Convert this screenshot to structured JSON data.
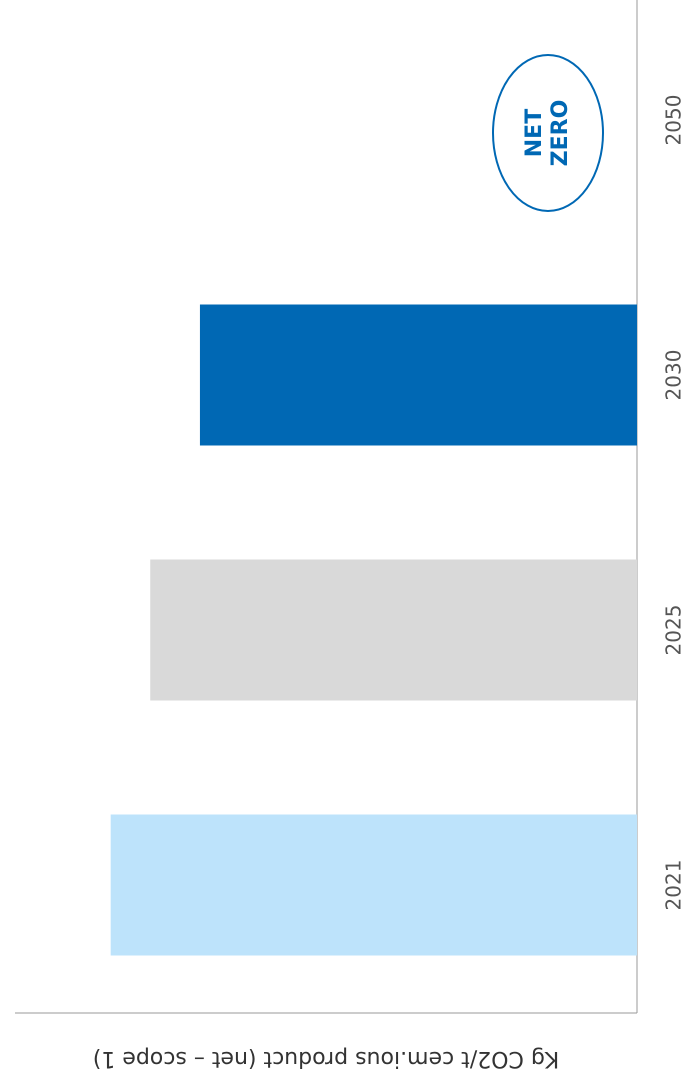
{
  "chart_data": {
    "type": "bar",
    "orientation": "rotated",
    "y_label": "Kg CO2/t cem.ious product (net – scope 1)",
    "categories": [
      "2021",
      "2025",
      "2030",
      "2050"
    ],
    "values": [
      572,
      529,
      475,
      0
    ],
    "colors": [
      "#bde3fb",
      "#d9d9d9",
      "#0068b4",
      "#0068b4"
    ],
    "ylim": [
      0,
      676
    ],
    "annotation": [
      "NET",
      "ZERO"
    ]
  }
}
